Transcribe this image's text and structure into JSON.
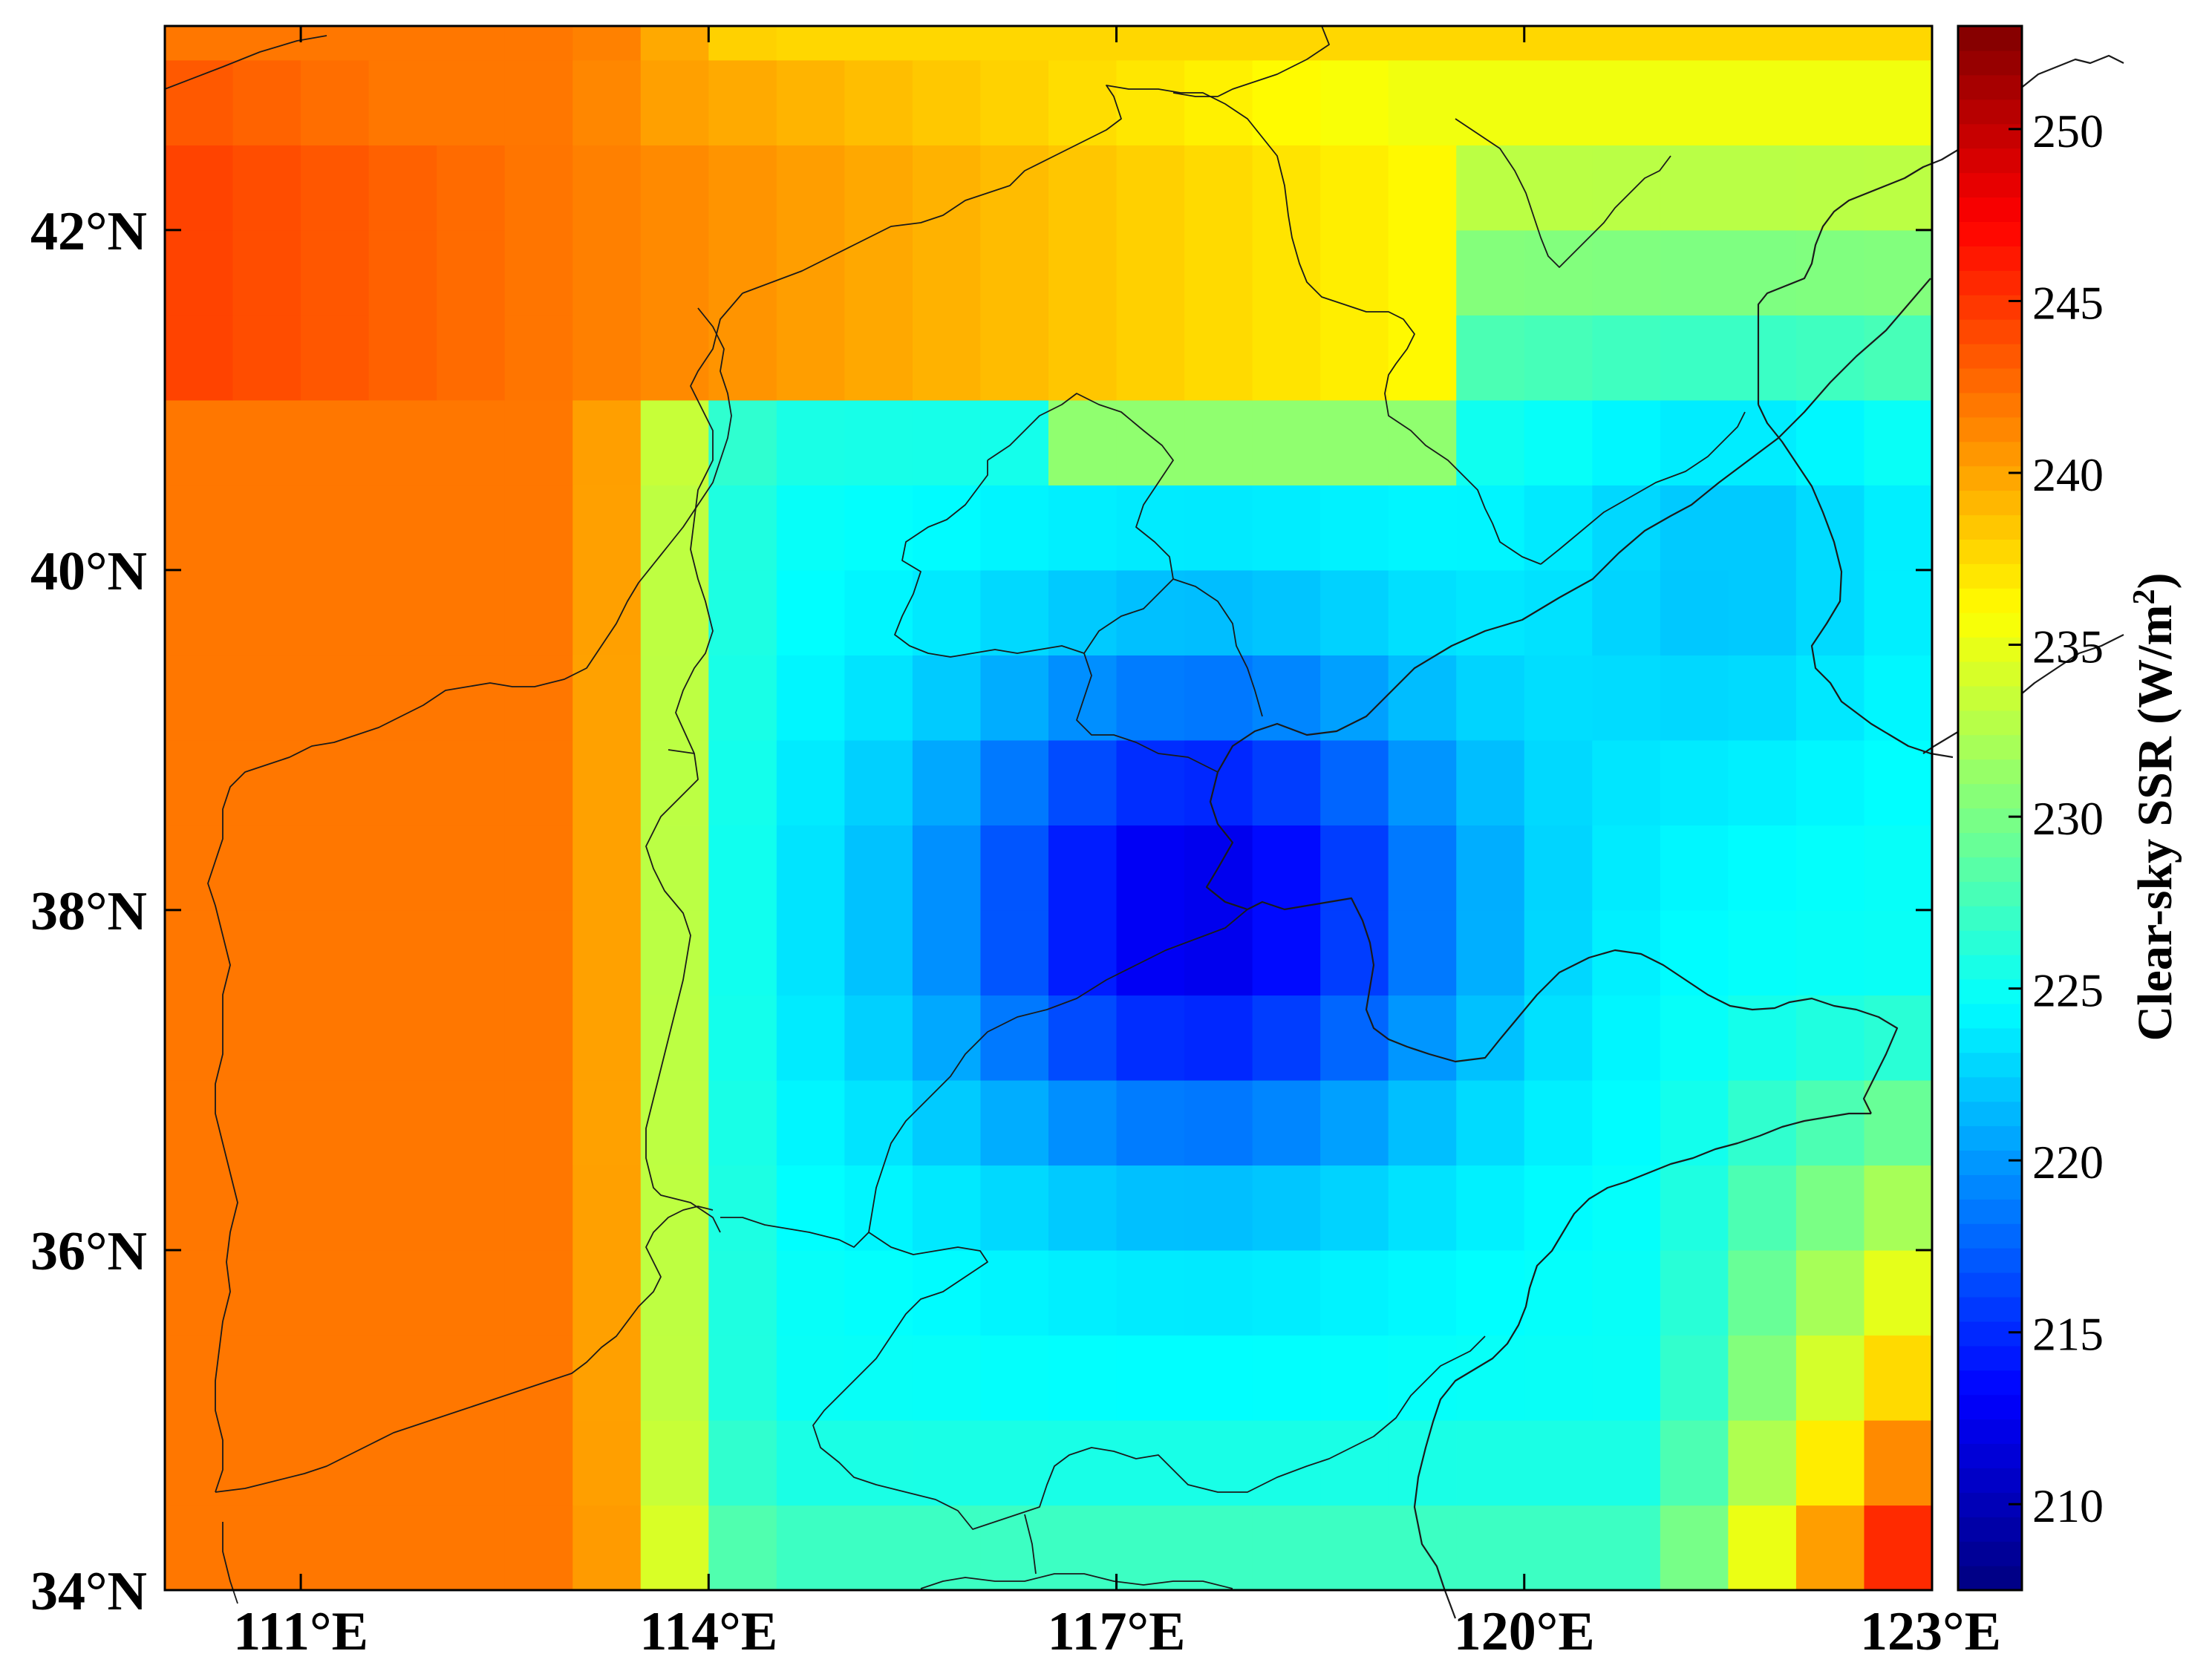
{
  "map": {
    "lon_range": [
      110.0,
      123.0
    ],
    "lat_range": [
      34.0,
      43.2
    ],
    "grid_res_lon": 0.5,
    "grid_res_lat": 0.5,
    "x_ticks": [
      {
        "lon": 111,
        "label": "111°E"
      },
      {
        "lon": 114,
        "label": "114°E"
      },
      {
        "lon": 117,
        "label": "117°E"
      },
      {
        "lon": 120,
        "label": "120°E"
      },
      {
        "lon": 123,
        "label": "123°E"
      }
    ],
    "y_ticks": [
      {
        "lat": 34,
        "label": "34°N"
      },
      {
        "lat": 36,
        "label": "36°N"
      },
      {
        "lat": 38,
        "label": "38°N"
      },
      {
        "lat": 40,
        "label": "40°N"
      },
      {
        "lat": 42,
        "label": "42°N"
      }
    ]
  },
  "colorbar": {
    "title": "Clear-sky SSR (W/m",
    "title_sup": "2",
    "title_end": ")",
    "vmin": 207.5,
    "vmax": 253,
    "ticks": [
      {
        "value": 210,
        "label": "210"
      },
      {
        "value": 215,
        "label": "215"
      },
      {
        "value": 220,
        "label": "220"
      },
      {
        "value": 225,
        "label": "225"
      },
      {
        "value": 230,
        "label": "230"
      },
      {
        "value": 235,
        "label": "235"
      },
      {
        "value": 240,
        "label": "240"
      },
      {
        "value": 245,
        "label": "245"
      },
      {
        "value": 250,
        "label": "250"
      }
    ],
    "colormap": "jet"
  }
}
